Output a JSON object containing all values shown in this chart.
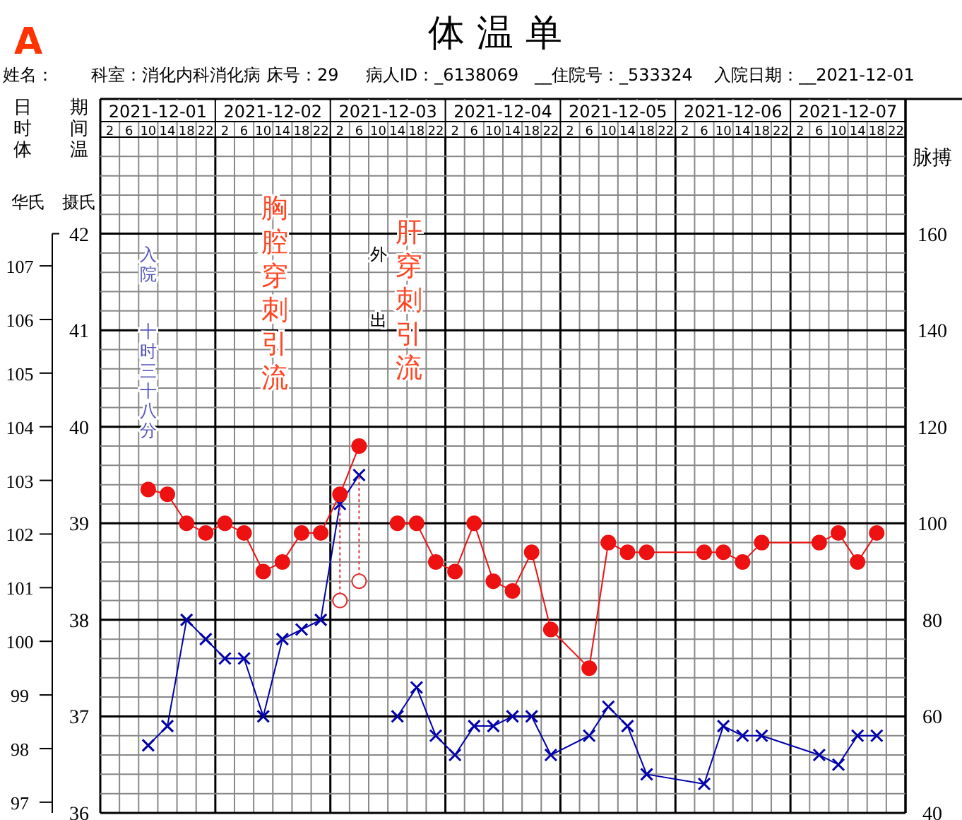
{
  "chart_data": {
    "type": "line",
    "title": "体 温 单",
    "subtitle": "姓名：       科室：消化内科消化病 床号：29     病人ID：_6138069   __住院号：_533324    入院日期：__2021-12-01",
    "xlabel": "时 间",
    "ylabel": "摄氏",
    "y2label": "脉搏",
    "y3label": "华氏",
    "categories": [
      "2",
      "6",
      "10",
      "14",
      "18",
      "22",
      "2",
      "6",
      "10",
      "14",
      "18",
      "22",
      "2",
      "6",
      "10",
      "14",
      "18",
      "22",
      "2",
      "6",
      "10",
      "14",
      "18",
      "22",
      "2",
      "6",
      "10",
      "14",
      "18",
      "22",
      "2",
      "6",
      "10",
      "14",
      "18",
      "22",
      "2",
      "6",
      "10",
      "14",
      "18",
      "22"
    ],
    "ylim": [
      36,
      43
    ],
    "yticks": [
      36,
      37,
      38,
      39,
      40,
      41,
      42
    ],
    "y2lim": [
      40,
      180
    ],
    "y2ticks": [
      40,
      60,
      80,
      100,
      120,
      140,
      160
    ],
    "y3lim": [
      96.8,
      109.4
    ],
    "y3ticks": [
      97,
      98,
      99,
      100,
      101,
      102,
      103,
      104,
      105,
      106,
      107
    ],
    "grid": true,
    "series": [
      {
        "color": "#0000aa",
        "marker": "cross",
        "values": [
          null,
          null,
          36.7,
          36.9,
          38.0,
          37.8,
          37.6,
          37.6,
          37.0,
          37.8,
          37.9,
          38.0,
          39.2,
          39.5,
          null,
          null,
          null,
          null,
          null,
          null,
          null,
          null,
          null,
          null,
          null,
          null,
          null,
          null,
          null,
          null,
          null,
          null,
          null,
          null,
          null,
          null,
          null,
          null,
          null,
          null,
          null,
          null
        ]
      },
      {
        "color": "#0000aa",
        "marker": "cross",
        "values": [
          null,
          null,
          null,
          null,
          null,
          null,
          null,
          null,
          null,
          null,
          null,
          null,
          null,
          null,
          null,
          37.0,
          37.3,
          36.8,
          36.6,
          36.9,
          36.9,
          37.0,
          37.0,
          36.6,
          null,
          36.8,
          37.1,
          36.9,
          36.4,
          null,
          null,
          36.3,
          36.9,
          36.8,
          36.8,
          null,
          null,
          36.6,
          36.5,
          36.8,
          36.8,
          null
        ]
      },
      {
        "color": "#ee1111",
        "marker": "circle",
        "axis": "y2",
        "values": [
          null,
          null,
          107,
          106,
          100,
          98,
          100,
          98,
          90,
          92,
          98,
          98,
          106,
          116,
          null,
          null,
          null,
          null,
          null,
          null,
          null,
          null,
          null,
          null,
          null,
          null,
          null,
          null,
          null,
          null,
          null,
          null,
          null,
          null,
          null,
          null,
          null,
          null,
          null,
          null,
          null,
          null
        ]
      },
      {
        "color": "#ee1111",
        "marker": "circle",
        "axis": "y2",
        "values": [
          null,
          null,
          null,
          null,
          null,
          null,
          null,
          null,
          null,
          null,
          null,
          null,
          null,
          null,
          null,
          100,
          100,
          92,
          90,
          100,
          88,
          86,
          94,
          78,
          null,
          70,
          96,
          94,
          94,
          null,
          null,
          94,
          94,
          92,
          96,
          null,
          null,
          96,
          98,
          92,
          98,
          null
        ]
      },
      {
        "type": "scatter",
        "color": "#dd3333",
        "marker": "circle",
        "line_style": "dotted",
        "values": [
          null,
          null,
          null,
          null,
          null,
          null,
          null,
          null,
          null,
          null,
          null,
          null,
          38.2,
          38.4,
          null,
          null,
          null,
          null,
          null,
          null,
          null,
          null,
          null,
          null,
          null,
          null,
          null,
          null,
          null,
          null,
          null,
          null,
          null,
          null,
          null,
          null,
          null,
          null,
          null,
          null,
          null,
          null
        ],
        "errors": [
          null,
          null,
          null,
          null,
          null,
          null,
          null,
          null,
          null,
          null,
          null,
          null,
          [
            38.2,
            39.2
          ],
          [
            38.4,
            39.5
          ],
          null,
          null,
          null,
          null,
          null,
          null,
          null,
          null,
          null,
          null,
          null,
          null,
          null,
          null,
          null,
          null,
          null,
          null,
          null,
          null,
          null,
          null,
          null,
          null,
          null,
          null,
          null,
          null
        ]
      }
    ],
    "annotations": [
      "A",
      "体 温",
      "日 期",
      "2021-12-01",
      "2021-12-02",
      "2021-12-03",
      "2021-12-04",
      "2021-12-05",
      "2021-12-06",
      "2021-12-07",
      "入院",
      "十时三十八分",
      "外",
      "出",
      "胸腔穿刺引流",
      "肝穿刺引流"
    ]
  }
}
